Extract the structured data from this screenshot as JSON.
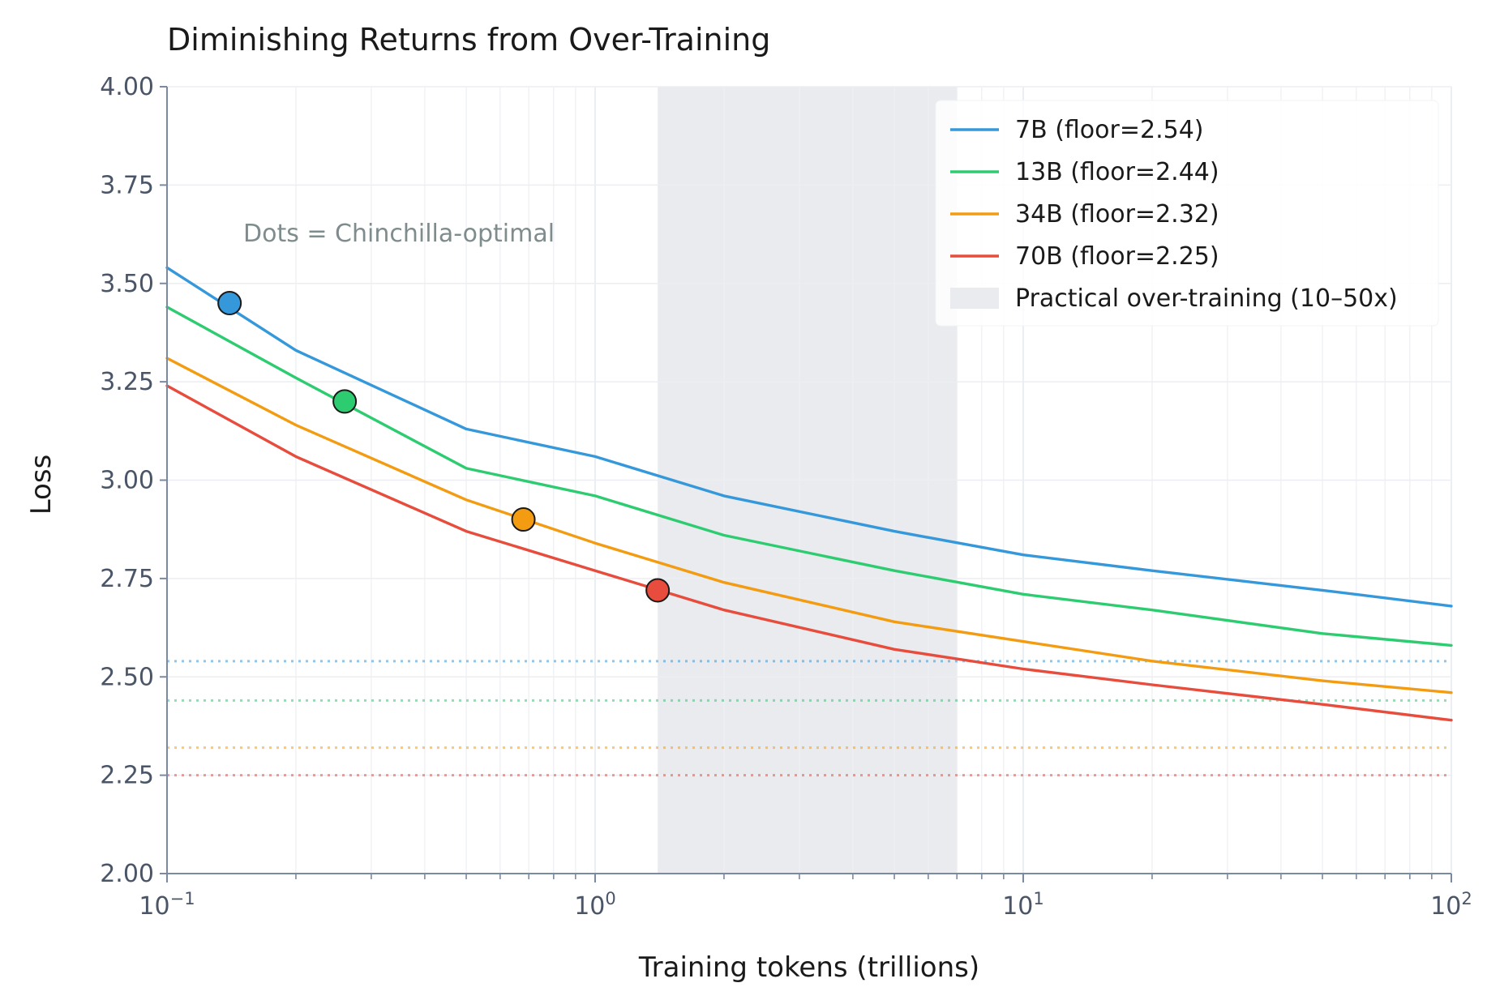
{
  "chart_data": {
    "type": "line",
    "title": "Diminishing Returns from Over-Training",
    "xlabel": "Training tokens (trillions)",
    "ylabel": "Loss",
    "x_scale": "log",
    "xlim": [
      0.1,
      100
    ],
    "ylim": [
      2.0,
      4.0
    ],
    "x_ticks": [
      {
        "value": 0.1,
        "base": "10",
        "exp": "−1"
      },
      {
        "value": 1,
        "base": "10",
        "exp": "0"
      },
      {
        "value": 10,
        "base": "10",
        "exp": "1"
      },
      {
        "value": 100,
        "base": "10",
        "exp": "2"
      }
    ],
    "y_ticks": [
      "2.00",
      "2.25",
      "2.50",
      "2.75",
      "3.00",
      "3.25",
      "3.50",
      "3.75",
      "4.00"
    ],
    "grid": true,
    "legend_position": "top-right",
    "annotation": "Dots = Chinchilla-optimal",
    "shaded_region": {
      "label": "Practical over-training (10–50x)",
      "x_start": 1.4,
      "x_end": 7.0,
      "color": "#e9ebee"
    },
    "series": [
      {
        "name": "7B (floor=2.54)",
        "color": "#3498db",
        "floor": 2.54,
        "x": [
          0.1,
          0.2,
          0.5,
          1,
          2,
          5,
          10,
          20,
          50,
          100
        ],
        "y": [
          3.54,
          3.33,
          3.13,
          3.06,
          2.96,
          2.87,
          2.81,
          2.77,
          2.72,
          2.68
        ],
        "optimal": {
          "x": 0.14,
          "y": 3.45
        }
      },
      {
        "name": "13B (floor=2.44)",
        "color": "#2ecc71",
        "floor": 2.44,
        "x": [
          0.1,
          0.2,
          0.5,
          1,
          2,
          5,
          10,
          20,
          50,
          100
        ],
        "y": [
          3.44,
          3.26,
          3.03,
          2.96,
          2.86,
          2.77,
          2.71,
          2.67,
          2.61,
          2.58
        ],
        "optimal": {
          "x": 0.26,
          "y": 3.2
        }
      },
      {
        "name": "34B (floor=2.32)",
        "color": "#f39c12",
        "floor": 2.32,
        "x": [
          0.1,
          0.2,
          0.5,
          1,
          2,
          5,
          10,
          20,
          50,
          100
        ],
        "y": [
          3.31,
          3.14,
          2.95,
          2.84,
          2.74,
          2.64,
          2.59,
          2.54,
          2.49,
          2.46
        ],
        "optimal": {
          "x": 0.68,
          "y": 2.9
        }
      },
      {
        "name": "70B (floor=2.25)",
        "color": "#e74c3c",
        "floor": 2.25,
        "x": [
          0.1,
          0.2,
          0.5,
          1,
          2,
          5,
          10,
          20,
          50,
          100
        ],
        "y": [
          3.24,
          3.06,
          2.87,
          2.77,
          2.67,
          2.57,
          2.52,
          2.48,
          2.43,
          2.39
        ],
        "optimal": {
          "x": 1.4,
          "y": 2.72
        }
      }
    ]
  }
}
